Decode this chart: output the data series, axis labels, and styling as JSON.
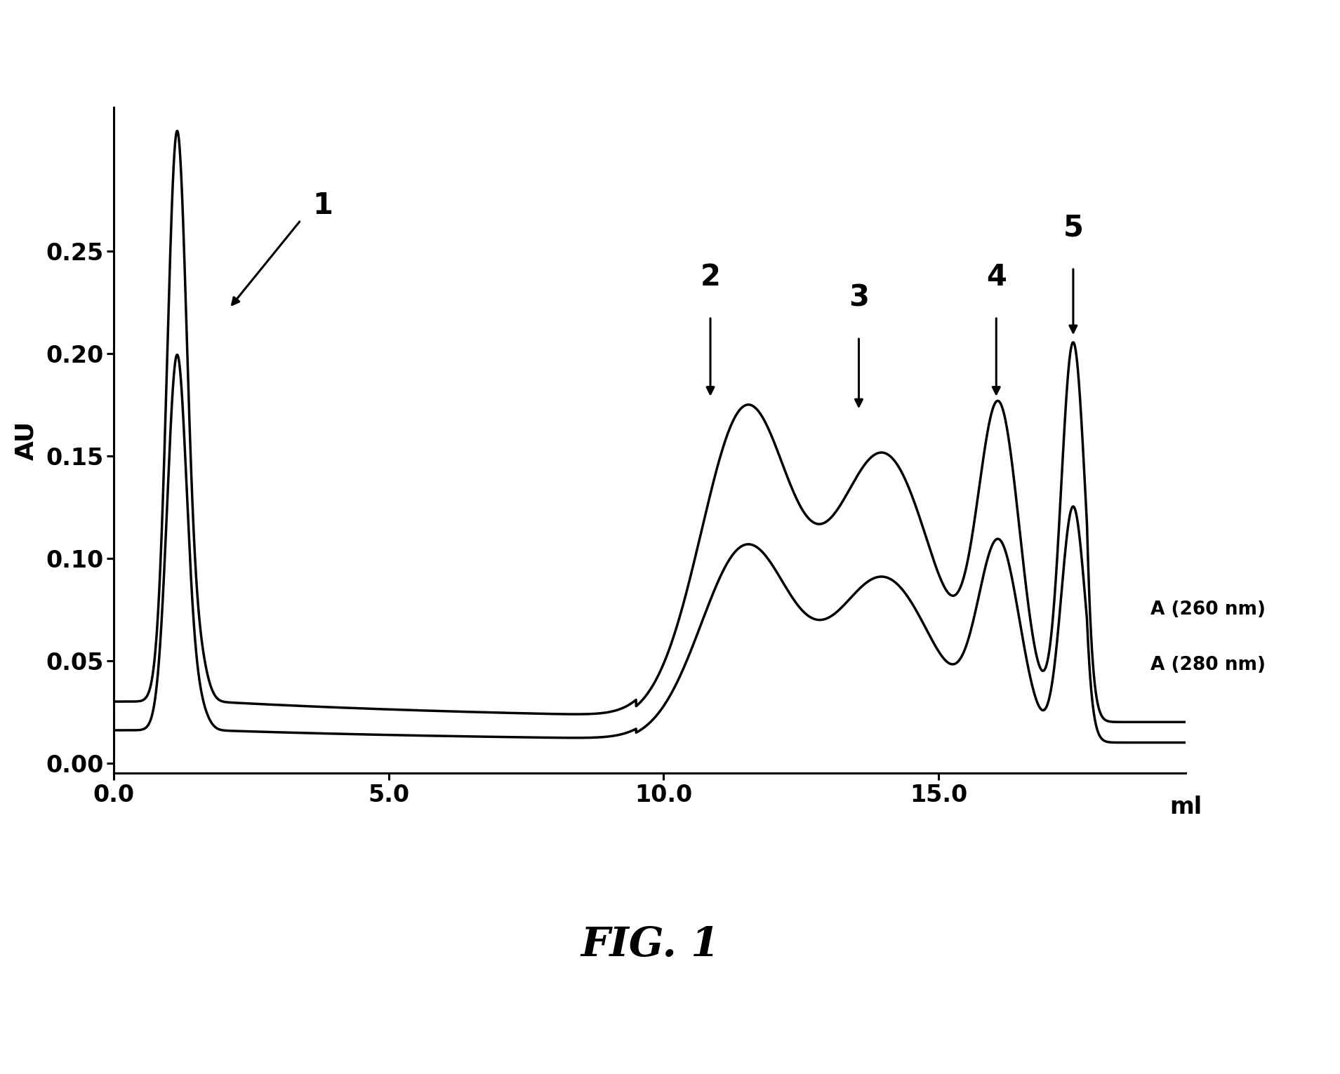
{
  "title": "FIG. 1",
  "ylabel": "AU",
  "xlabel": "ml",
  "xlim": [
    0.0,
    19.5
  ],
  "ylim": [
    -0.005,
    0.32
  ],
  "yticks": [
    0.0,
    0.05,
    0.1,
    0.15,
    0.2,
    0.25
  ],
  "xticks": [
    0.0,
    5.0,
    10.0,
    15.0
  ],
  "line_color": "#000000",
  "background_color": "#ffffff",
  "label_260": "A (260 nm)",
  "label_280": "A (280 nm)",
  "figsize": [
    19.09,
    15.31
  ],
  "dpi": 100
}
